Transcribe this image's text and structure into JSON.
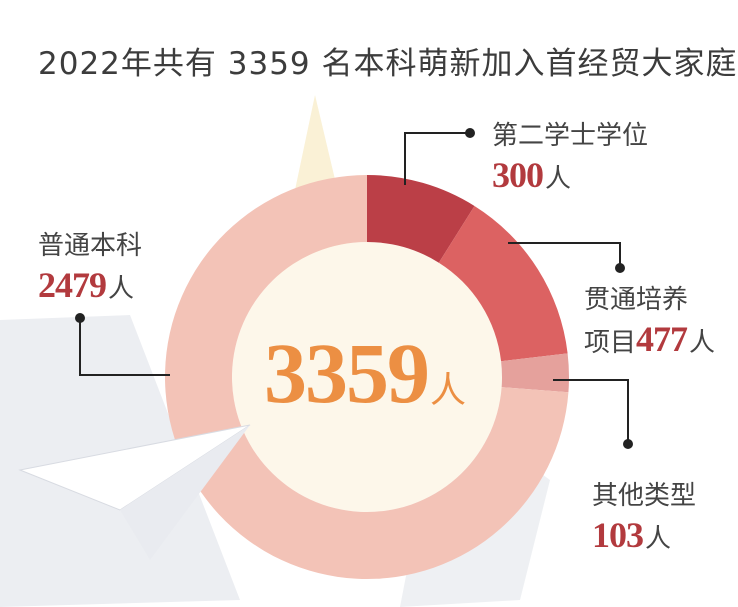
{
  "title": "2022年共有 3359 名本科萌新加入首经贸大家庭",
  "center": {
    "value": "3359",
    "unit": "人"
  },
  "colors": {
    "center_text": "#ec8f43",
    "value_text": "#b23a3e",
    "inner_fill": "#fdf7ea"
  },
  "chart_data": {
    "type": "pie",
    "variant": "donut",
    "total": 3359,
    "unit": "人",
    "categories": [
      "第二学士学位",
      "贯通培养项目",
      "其他类型",
      "普通本科"
    ],
    "values": [
      300,
      477,
      103,
      2479
    ],
    "colors": [
      "#bb3f47",
      "#dc6262",
      "#e5a19c",
      "#f3c3b7"
    ],
    "labels": [
      {
        "name": "第二学士学位",
        "value": "300",
        "unit": "人"
      },
      {
        "name": "贯通培养",
        "prefix": "项目",
        "value": "477",
        "unit": "人"
      },
      {
        "name": "其他类型",
        "value": "103",
        "unit": "人"
      },
      {
        "name": "普通本科",
        "value": "2479",
        "unit": "人"
      }
    ]
  }
}
